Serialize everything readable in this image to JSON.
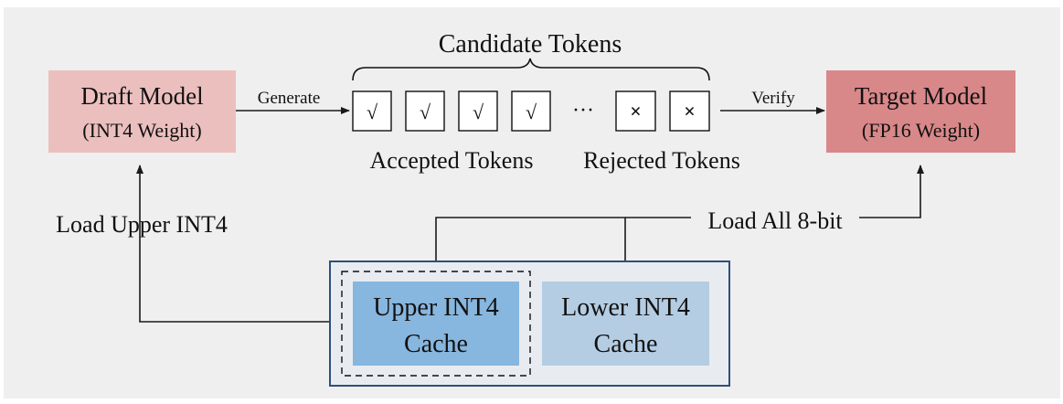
{
  "candidate_tokens": {
    "label": "Candidate Tokens",
    "ellipsis": "···",
    "accepted_symbol": "√",
    "rejected_symbol": "×",
    "accepted_count": 4,
    "rejected_count": 2,
    "accepted_label": "Accepted Tokens",
    "rejected_label": "Rejected Tokens"
  },
  "draft_model": {
    "title": "Draft Model",
    "subtitle": "(INT4 Weight)",
    "color": "#ecbfbf"
  },
  "target_model": {
    "title": "Target Model",
    "subtitle": "(FP16 Weight)",
    "color": "#d9888a"
  },
  "edges": {
    "generate": "Generate",
    "verify": "Verify",
    "load_upper": "Load Upper INT4",
    "load_all": "Load All 8-bit"
  },
  "cache": {
    "upper_line1": "Upper INT4",
    "upper_line2": "Cache",
    "lower_line1": "Lower INT4",
    "lower_line2": "Cache",
    "upper_color": "#87b6df",
    "lower_color": "#b4cde3",
    "border_color": "#2f4f7a"
  }
}
